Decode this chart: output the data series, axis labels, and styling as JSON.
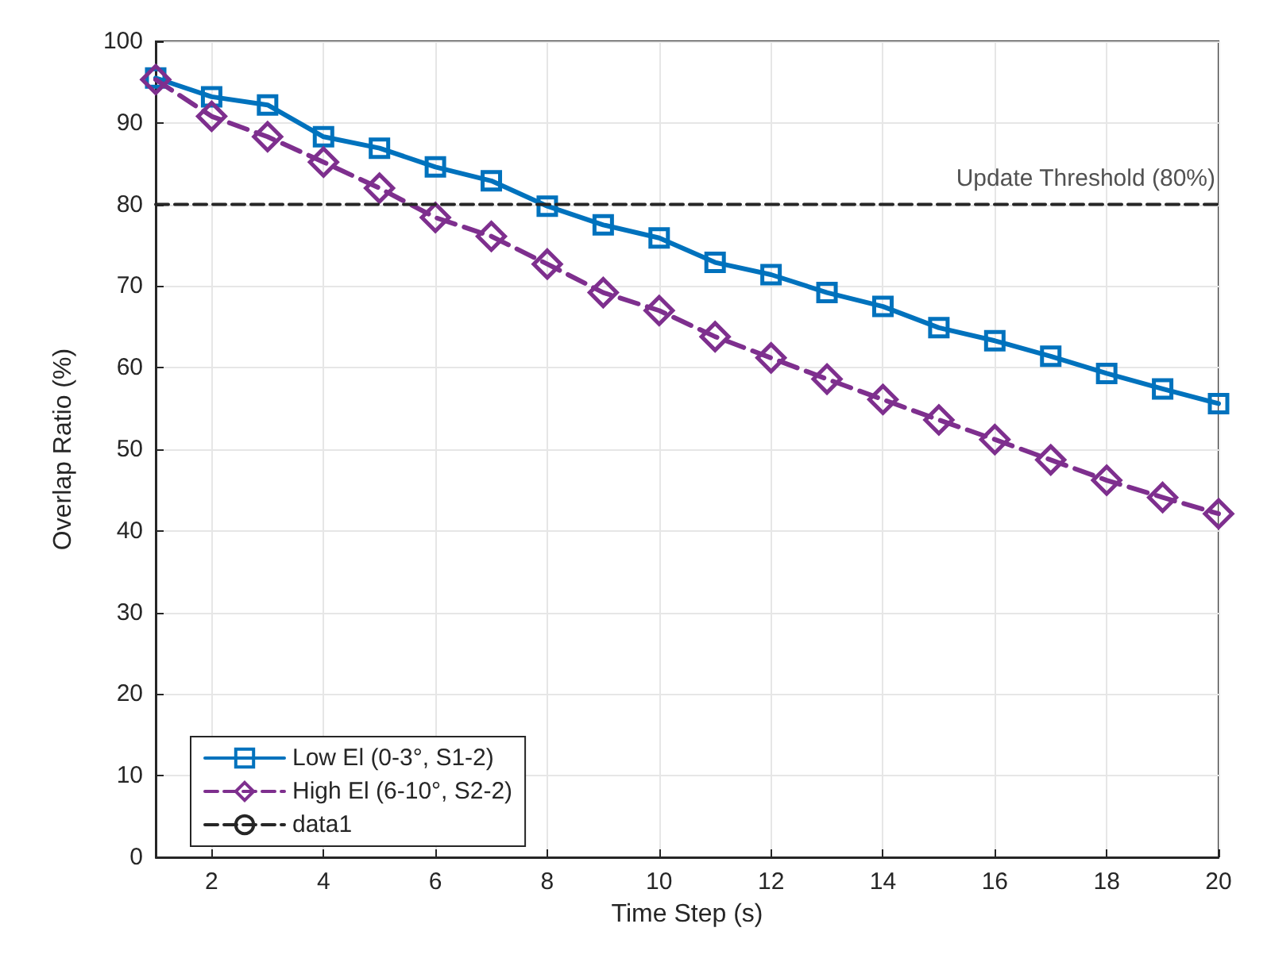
{
  "chart_data": {
    "type": "line",
    "xlabel": "Time Step (s)",
    "ylabel": "Overlap Ratio (%)",
    "x": [
      1,
      2,
      3,
      4,
      5,
      6,
      7,
      8,
      9,
      10,
      11,
      12,
      13,
      14,
      15,
      16,
      17,
      18,
      19,
      20
    ],
    "series": [
      {
        "name": "Low El (0-3°, S1-2)",
        "color": "#0072bd",
        "marker": "square",
        "line_style": "solid",
        "values": [
          95.5,
          93.2,
          92.2,
          88.3,
          86.9,
          84.6,
          82.9,
          79.8,
          77.5,
          75.9,
          72.9,
          71.4,
          69.2,
          67.5,
          64.9,
          63.3,
          61.4,
          59.3,
          57.4,
          55.6
        ]
      },
      {
        "name": "High El (6-10°, S2-2)",
        "color": "#7e2f8e",
        "marker": "diamond",
        "line_style": "dashed",
        "values": [
          95.3,
          90.8,
          88.3,
          85.2,
          82.0,
          78.4,
          76.1,
          72.7,
          69.2,
          67.0,
          63.8,
          61.2,
          58.6,
          56.1,
          53.6,
          51.2,
          48.7,
          46.2,
          44.1,
          42.1
        ]
      },
      {
        "name": "data1",
        "color": "#262626",
        "marker": "none",
        "line_style": "dashed",
        "x": [
          1,
          20
        ],
        "values": [
          80,
          80
        ]
      }
    ],
    "annotations": [
      {
        "text": "Update Threshold (80%)",
        "x": 20,
        "y": 80
      }
    ],
    "xlim": [
      1,
      20
    ],
    "xticks": [
      2,
      4,
      6,
      8,
      10,
      12,
      14,
      16,
      18,
      20
    ],
    "ylim": [
      0,
      100
    ],
    "yticks": [
      0,
      10,
      20,
      30,
      40,
      50,
      60,
      70,
      80,
      90,
      100
    ],
    "grid": true,
    "legend": "bottom left"
  }
}
